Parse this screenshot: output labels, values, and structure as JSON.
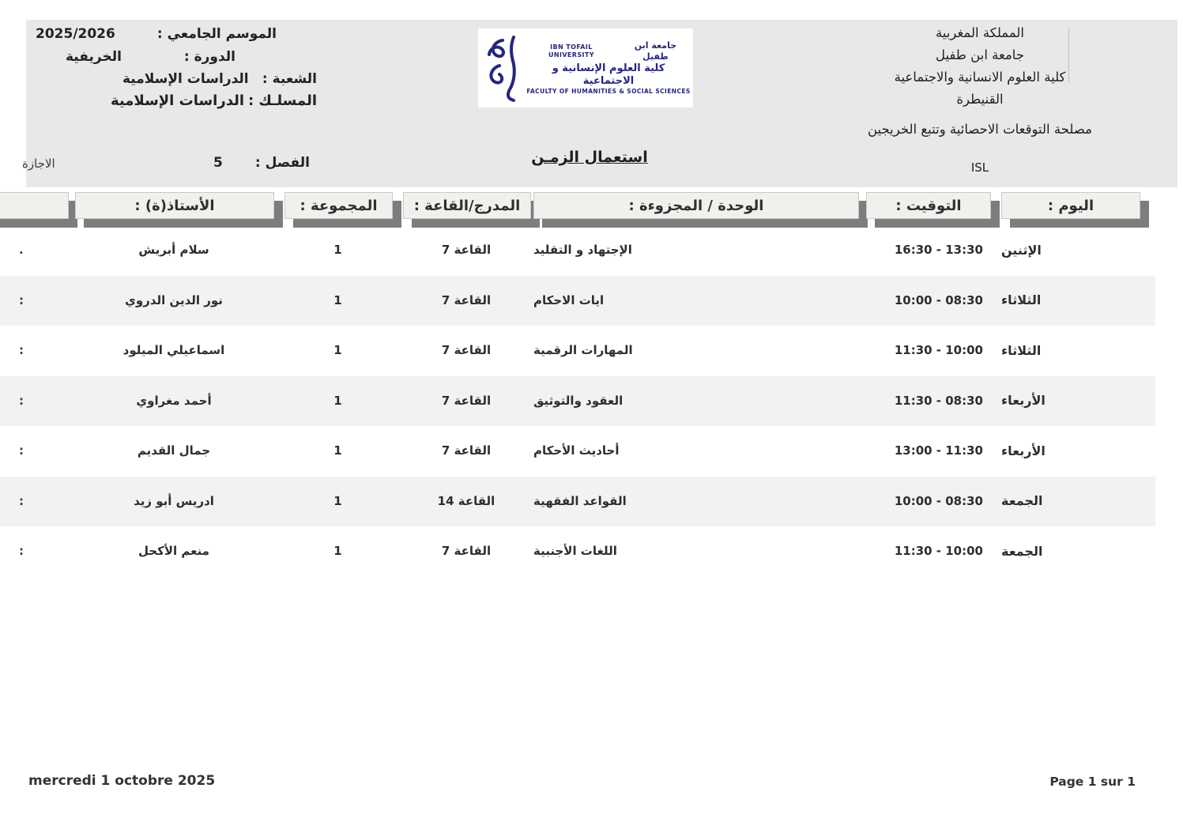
{
  "page": {
    "header_left": {
      "lines": [
        {
          "label": "الموسم الجامعي :",
          "value": "2025/2026"
        },
        {
          "label": "الدورة :",
          "value": "الخريفية"
        },
        {
          "label": "الشعبة :",
          "value": "الدراسات الإسلامية"
        },
        {
          "label": "المسلـك :",
          "value": "الدراسات الإسلامية"
        }
      ]
    },
    "logo": {
      "english_name": "IBN TOFAIL UNIVERSITY",
      "arabic_name": "جامعة ابن طفيل",
      "arabic_faculty": "كلية العلوم الإنسانية و الاجتماعية",
      "english_faculty": "FACULTY OF HUMANITIES & SOCIAL SCIENCES"
    },
    "header_right": {
      "lines": [
        "المملكة المغربية",
        "جامعة ابن طفيل",
        "كلية العلوم الانسانية والاجتماعية",
        "القنيطرة"
      ],
      "department": "مصلحة التوقعات الاحصائية وتتبع الخريجين",
      "code": "ISL"
    },
    "title": {
      "main": "استعمال الزمـن",
      "semester_label": "الفصل :",
      "semester_value": "5",
      "degree": "الاجازة"
    },
    "table": {
      "columns": [
        {
          "key": "day",
          "label": "اليوم :"
        },
        {
          "key": "time",
          "label": "التوقيت :"
        },
        {
          "key": "unit",
          "label": "الوحدة / المجزوءة :"
        },
        {
          "key": "room",
          "label": "المدرج/القاعة :"
        },
        {
          "key": "group",
          "label": "المجموعة :"
        },
        {
          "key": "professor",
          "label": "الأستاذ(ة) :"
        }
      ],
      "rows": [
        {
          "mark": ".",
          "day": "الإثنين",
          "time": "16:30 - 13:30",
          "unit": "الإجتهاد و التقليد",
          "room": "القاعة 7",
          "group": "1",
          "professor": "سلام أبريش"
        },
        {
          "mark": ":",
          "day": "الثلاثاء",
          "time": "10:00 - 08:30",
          "unit": "ايات الاحكام",
          "room": "القاعة 7",
          "group": "1",
          "professor": "نور الدين الدروي"
        },
        {
          "mark": ":",
          "day": "الثلاثاء",
          "time": "11:30 - 10:00",
          "unit": "المهارات الرقمية",
          "room": "القاعة 7",
          "group": "1",
          "professor": "اسماعيلي الميلود"
        },
        {
          "mark": ":",
          "day": "الأربعاء",
          "time": "11:30 - 08:30",
          "unit": "العقود والتوثيق",
          "room": "القاعة 7",
          "group": "1",
          "professor": "أحمد مغراوي"
        },
        {
          "mark": ":",
          "day": "الأربعاء",
          "time": "13:00 - 11:30",
          "unit": "أحاديث الأحكام",
          "room": "القاعة 7",
          "group": "1",
          "professor": "جمال القديم"
        },
        {
          "mark": ":",
          "day": "الجمعة",
          "time": "10:00 - 08:30",
          "unit": "القواعد الفقهية",
          "room": "القاعة 14",
          "group": "1",
          "professor": "ادريس أبو زيد"
        },
        {
          "mark": ":",
          "day": "الجمعة",
          "time": "11:30 - 10:00",
          "unit": "اللغات الأجنبية",
          "room": "القاعة 7",
          "group": "1",
          "professor": "منعم الأكحل"
        }
      ]
    },
    "footer": {
      "date": "mercredi 1 octobre 2025",
      "page": "Page 1 sur 1"
    },
    "colors": {
      "band": "#e8e8e8",
      "row_alt": "#f2f2f2",
      "header_cell": "#f1f0ed",
      "header_shadow": "#7d7d7d",
      "logo_navy": "#26267d"
    }
  }
}
